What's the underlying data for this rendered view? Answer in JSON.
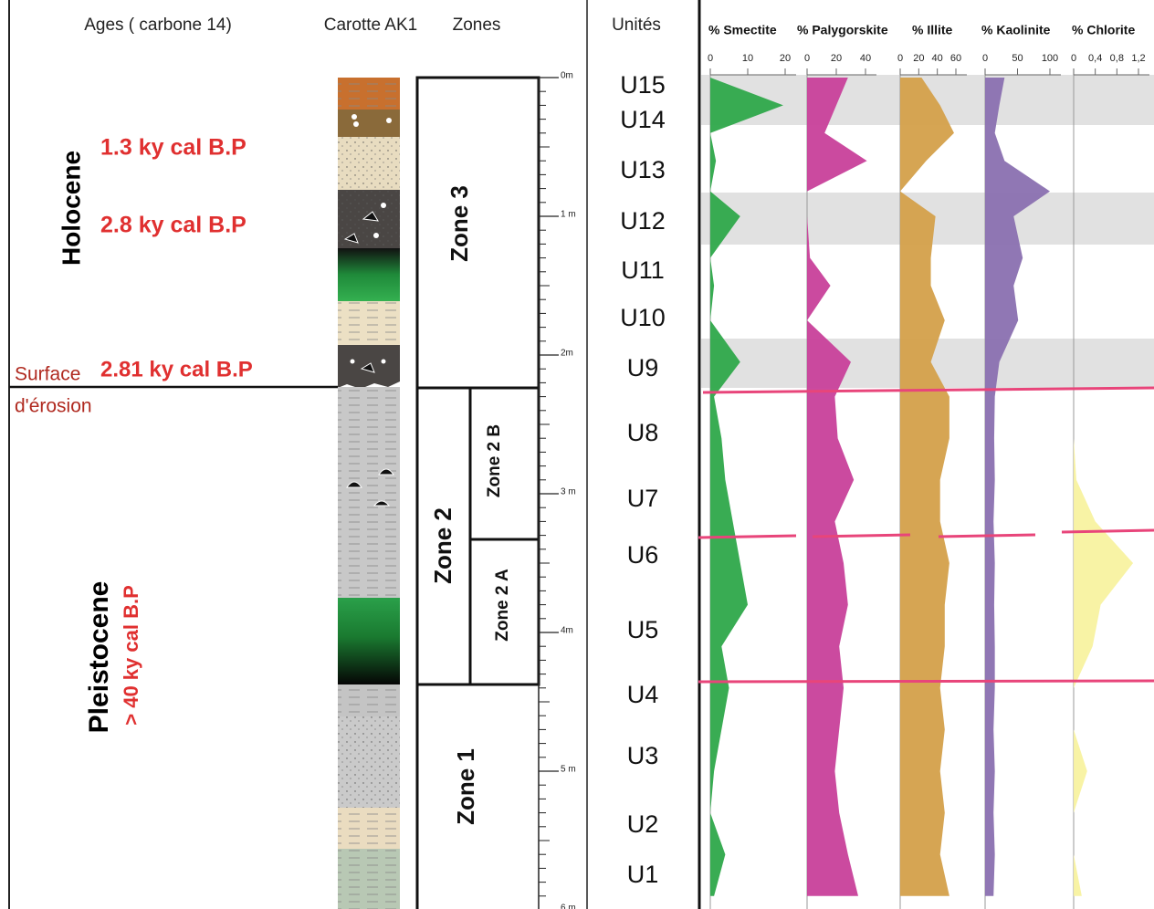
{
  "headers": {
    "ages": "Ages ( carbone 14)",
    "core": "Carotte AK1",
    "zones": "Zones",
    "units": "Unités"
  },
  "ages": {
    "holocene": "Holocene",
    "age_1": "1.3 ky cal B.P",
    "age_2": "2.8 ky cal B.P",
    "surface": "Surface",
    "age_3": "2.81 ky cal B.P",
    "erosion": "d'érosion",
    "pleistocene": "Pleistocene",
    "age_4": "> 40 ky cal B.P"
  },
  "zones": {
    "zone_3": "Zone 3",
    "zone_2": "Zone 2",
    "zone_2b": "Zone 2 B",
    "zone_2a": "Zone 2 A",
    "zone_1": "Zone 1"
  },
  "depth_ticks": [
    {
      "value": 0,
      "label": "0m"
    },
    {
      "value": 1,
      "label": "1 m"
    },
    {
      "value": 2,
      "label": "2m"
    },
    {
      "value": 3,
      "label": "3 m"
    },
    {
      "value": 4,
      "label": "4m"
    },
    {
      "value": 5,
      "label": "5 m"
    },
    {
      "value": 6,
      "label": "6 m"
    }
  ],
  "units": [
    "U15",
    "U14",
    "U13",
    "U12",
    "U11",
    "U10",
    "U9",
    "U8",
    "U7",
    "U6",
    "U5",
    "U4",
    "U3",
    "U2",
    "U1"
  ],
  "depths": [
    0,
    0.2,
    0.4,
    0.6,
    0.82,
    1.0,
    1.3,
    1.5,
    1.75,
    2.05,
    2.3,
    2.6,
    2.9,
    3.2,
    3.5,
    3.8,
    4.1,
    4.4,
    4.7,
    5.0,
    5.3,
    5.6,
    5.9
  ],
  "minerals": [
    {
      "name": "% Smectite",
      "color": "#2ea84a",
      "xlim": [
        0,
        20
      ],
      "xticks": [
        0,
        10,
        20
      ],
      "values": [
        0,
        19.5,
        0,
        1.5,
        0,
        8,
        0,
        1,
        0,
        8,
        1,
        3,
        4,
        6,
        8,
        10,
        3,
        5,
        3,
        1,
        0,
        4,
        1
      ]
    },
    {
      "name": "% Palygorskite",
      "color": "#c8409a",
      "xlim": [
        0,
        40
      ],
      "xticks": [
        0,
        20,
        40
      ],
      "values": [
        28,
        20,
        12,
        41,
        0,
        0,
        2,
        16,
        0,
        30,
        19,
        21,
        32,
        19,
        25,
        28,
        22,
        25,
        22,
        19,
        22,
        28,
        35
      ]
    },
    {
      "name": "% Illite",
      "color": "#d4a04a",
      "xlim": [
        0,
        60
      ],
      "xticks": [
        0,
        20,
        40,
        60
      ],
      "values": [
        23,
        43,
        58,
        28,
        0,
        38,
        33,
        33,
        48,
        33,
        53,
        53,
        43,
        43,
        53,
        48,
        48,
        43,
        48,
        43,
        48,
        43,
        53
      ]
    },
    {
      "name": "% Kaolinite",
      "color": "#8a70b0",
      "xlim": [
        0,
        100
      ],
      "xticks": [
        0,
        50,
        100
      ],
      "values": [
        30,
        22,
        15,
        30,
        100,
        44,
        58,
        44,
        51,
        22,
        15,
        14,
        15,
        13,
        15,
        14,
        15,
        15,
        13,
        15,
        13,
        15,
        13
      ]
    },
    {
      "name": "% Chlorite",
      "color": "#f8f2a0",
      "xlim": [
        0,
        1.2
      ],
      "xticks": [
        0,
        {
          "value": 0.4,
          "label": "0,4"
        },
        {
          "value": 0.8,
          "label": "0,8"
        },
        {
          "value": 1.2,
          "label": "1,2"
        }
      ],
      "values": [
        0,
        0,
        0,
        0,
        0,
        0,
        0,
        0,
        0,
        0,
        0,
        0,
        0.05,
        0.4,
        1.1,
        0.5,
        0.35,
        0,
        0,
        0.25,
        0,
        0,
        0.15
      ]
    }
  ]
}
